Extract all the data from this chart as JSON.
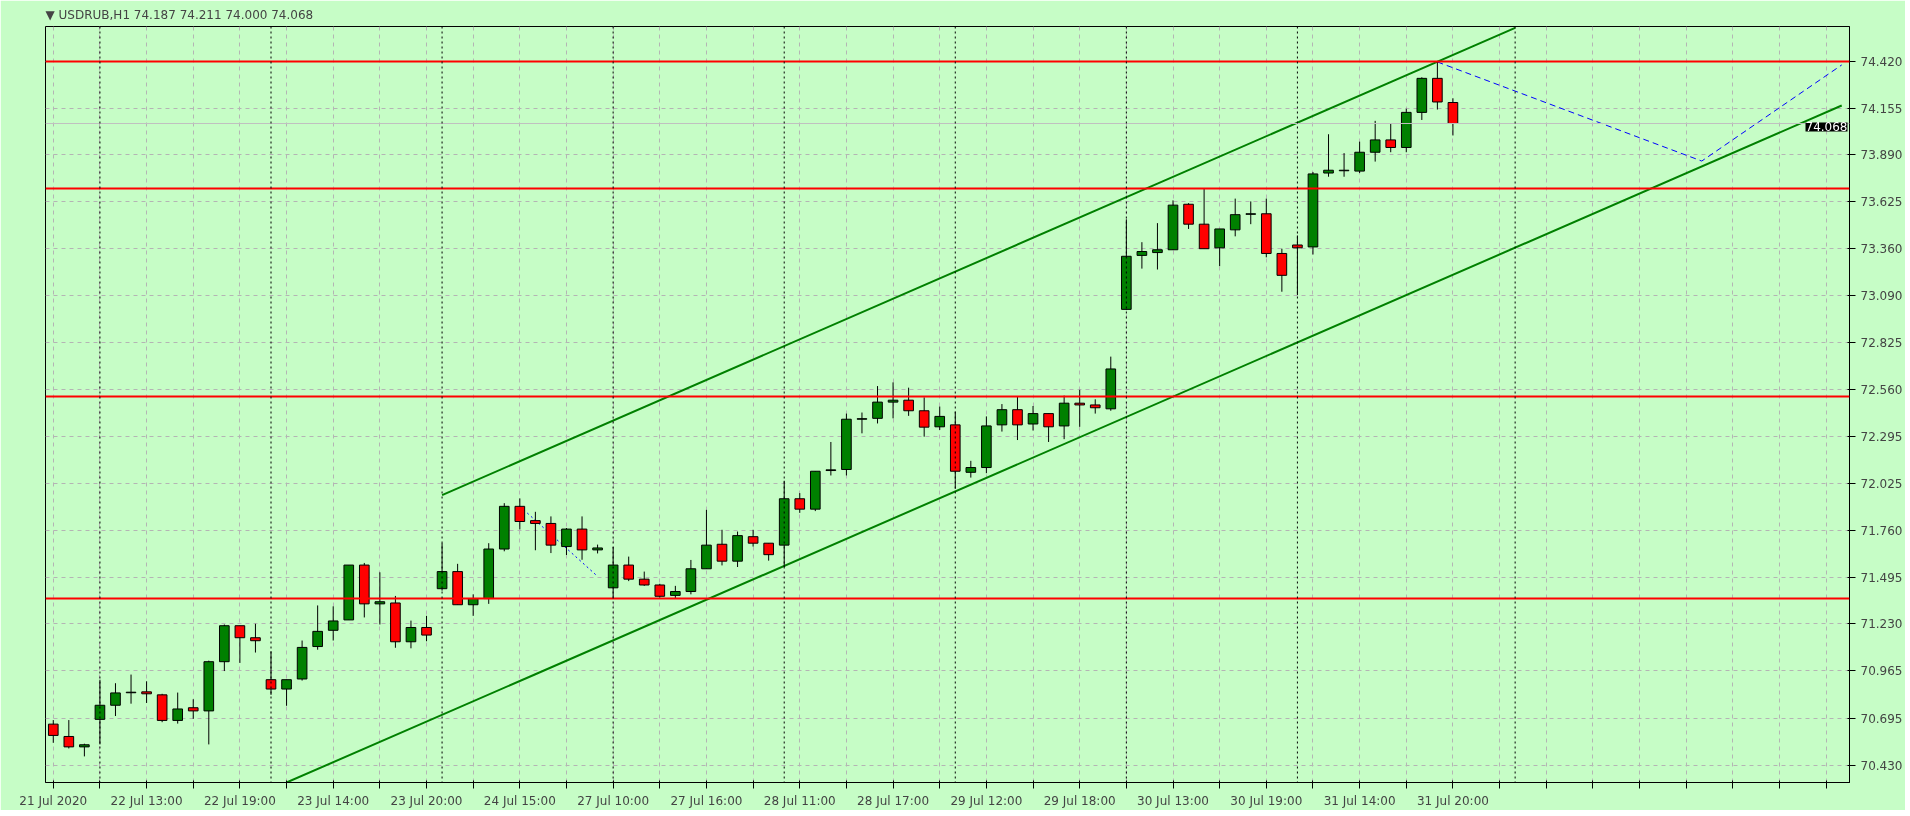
{
  "chart_data": {
    "type": "candlestick",
    "title": "▼ USDRUB,H1  74.187 74.211 74.000 74.068",
    "categories": [
      "21 Jul 2020",
      null,
      null,
      null,
      null,
      null,
      "22 Jul 13:00",
      null,
      null,
      null,
      null,
      null,
      "22 Jul 19:00",
      null,
      null,
      null,
      null,
      null,
      "23 Jul 14:00",
      null,
      null,
      null,
      null,
      null,
      "23 Jul 20:00",
      null,
      null,
      null,
      null,
      null,
      "24 Jul 15:00",
      null,
      null,
      null,
      null,
      null,
      "27 Jul 10:00",
      null,
      null,
      null,
      null,
      null,
      "27 Jul 16:00",
      null,
      null,
      null,
      null,
      null,
      "28 Jul 11:00",
      null,
      null,
      null,
      null,
      null,
      "28 Jul 17:00",
      null,
      null,
      null,
      null,
      null,
      "29 Jul 12:00",
      null,
      null,
      null,
      null,
      null,
      "29 Jul 18:00",
      null,
      null,
      null,
      null,
      null,
      "30 Jul 13:00",
      null,
      null,
      null,
      null,
      null,
      "30 Jul 19:00",
      null,
      null,
      null,
      null,
      null,
      "31 Jul 14:00",
      null,
      null,
      null,
      null,
      null,
      "31 Jul 20:00",
      null,
      null,
      null,
      null,
      null,
      null,
      null,
      null,
      null,
      null,
      null,
      null,
      null,
      null,
      null,
      null,
      null,
      null,
      null,
      null,
      null,
      null,
      null,
      null,
      null
    ],
    "ohlc": [
      [
        70.662,
        70.685,
        70.556,
        70.598
      ],
      [
        70.592,
        70.685,
        70.524,
        70.533
      ],
      [
        70.533,
        70.551,
        70.479,
        70.545
      ],
      [
        70.689,
        70.914,
        70.547,
        70.769
      ],
      [
        70.769,
        70.894,
        70.708,
        70.839
      ],
      [
        70.84,
        70.943,
        70.778,
        70.843
      ],
      [
        70.845,
        70.905,
        70.782,
        70.834
      ],
      [
        70.828,
        70.834,
        70.673,
        70.683
      ],
      [
        70.683,
        70.841,
        70.665,
        70.748
      ],
      [
        70.755,
        70.803,
        70.692,
        70.737
      ],
      [
        70.737,
        71.022,
        70.547,
        71.016
      ],
      [
        71.016,
        71.227,
        70.963,
        71.22
      ],
      [
        71.22,
        71.22,
        71.009,
        71.152
      ],
      [
        71.152,
        71.231,
        71.068,
        71.135
      ],
      [
        70.914,
        71.075,
        70.828,
        70.861
      ],
      [
        70.861,
        70.914,
        70.766,
        70.914
      ],
      [
        70.918,
        71.136,
        70.909,
        71.097
      ],
      [
        71.102,
        71.335,
        71.084,
        71.188
      ],
      [
        71.194,
        71.33,
        71.136,
        71.247
      ],
      [
        71.253,
        71.564,
        71.253,
        71.564
      ],
      [
        71.564,
        71.576,
        71.267,
        71.344
      ],
      [
        71.344,
        71.523,
        71.227,
        71.356
      ],
      [
        71.349,
        71.389,
        71.095,
        71.129
      ],
      [
        71.129,
        71.249,
        71.092,
        71.21
      ],
      [
        71.21,
        71.276,
        71.132,
        71.167
      ],
      [
        71.43,
        71.688,
        71.419,
        71.527
      ],
      [
        71.527,
        71.571,
        71.339,
        71.339
      ],
      [
        71.339,
        71.398,
        71.276,
        71.374
      ],
      [
        71.374,
        71.688,
        71.344,
        71.655
      ],
      [
        71.655,
        71.915,
        71.642,
        71.897
      ],
      [
        71.897,
        71.942,
        71.766,
        71.811
      ],
      [
        71.816,
        71.866,
        71.648,
        71.8
      ],
      [
        71.8,
        71.84,
        71.632,
        71.677
      ],
      [
        71.669,
        71.774,
        71.621,
        71.768
      ],
      [
        71.768,
        71.84,
        71.594,
        71.65
      ],
      [
        71.65,
        71.68,
        71.63,
        71.661
      ],
      [
        71.435,
        71.666,
        71.374,
        71.564
      ],
      [
        71.564,
        71.612,
        71.473,
        71.484
      ],
      [
        71.484,
        71.527,
        71.446,
        71.451
      ],
      [
        71.451,
        71.458,
        71.379,
        71.387
      ],
      [
        71.392,
        71.446,
        71.374,
        71.414
      ],
      [
        71.414,
        71.593,
        71.398,
        71.543
      ],
      [
        71.543,
        71.877,
        71.543,
        71.677
      ],
      [
        71.682,
        71.764,
        71.562,
        71.586
      ],
      [
        71.586,
        71.754,
        71.553,
        71.731
      ],
      [
        71.725,
        71.764,
        71.669,
        71.688
      ],
      [
        71.688,
        71.688,
        71.589,
        71.623
      ],
      [
        71.677,
        72.042,
        71.553,
        71.94
      ],
      [
        71.94,
        71.972,
        71.86,
        71.881
      ],
      [
        71.881,
        72.096,
        71.87,
        72.096
      ],
      [
        72.1,
        72.262,
        72.072,
        72.104
      ],
      [
        72.106,
        72.423,
        72.072,
        72.391
      ],
      [
        72.391,
        72.429,
        72.311,
        72.394
      ],
      [
        72.396,
        72.579,
        72.367,
        72.488
      ],
      [
        72.488,
        72.6,
        72.396,
        72.499
      ],
      [
        72.499,
        72.57,
        72.41,
        72.439
      ],
      [
        72.439,
        72.515,
        72.292,
        72.346
      ],
      [
        72.348,
        72.463,
        72.33,
        72.407
      ],
      [
        72.359,
        72.434,
        71.997,
        72.096
      ],
      [
        72.09,
        72.155,
        72.06,
        72.117
      ],
      [
        72.117,
        72.407,
        72.085,
        72.353
      ],
      [
        72.359,
        72.477,
        72.321,
        72.445
      ],
      [
        72.445,
        72.52,
        72.273,
        72.359
      ],
      [
        72.364,
        72.466,
        72.327,
        72.423
      ],
      [
        72.423,
        72.423,
        72.262,
        72.348
      ],
      [
        72.353,
        72.525,
        72.278,
        72.482
      ],
      [
        72.482,
        72.558,
        72.348,
        72.472
      ],
      [
        72.472,
        72.504,
        72.423,
        72.456
      ],
      [
        72.45,
        72.746,
        72.439,
        72.676
      ],
      [
        73.014,
        73.524,
        73.014,
        73.315
      ],
      [
        73.32,
        73.395,
        73.245,
        73.342
      ],
      [
        73.336,
        73.503,
        73.24,
        73.352
      ],
      [
        73.352,
        73.632,
        73.352,
        73.605
      ],
      [
        73.61,
        73.616,
        73.47,
        73.497
      ],
      [
        73.497,
        73.701,
        73.358,
        73.358
      ],
      [
        73.363,
        73.47,
        73.259,
        73.47
      ],
      [
        73.465,
        73.642,
        73.428,
        73.551
      ],
      [
        73.553,
        73.626,
        73.497,
        73.556
      ],
      [
        73.556,
        73.642,
        73.309,
        73.331
      ],
      [
        73.331,
        73.358,
        73.114,
        73.207
      ],
      [
        73.379,
        73.433,
        73.095,
        73.363
      ],
      [
        73.368,
        73.793,
        73.325,
        73.782
      ],
      [
        73.787,
        74.007,
        73.766,
        73.803
      ],
      [
        73.8,
        73.9,
        73.766,
        73.803
      ],
      [
        73.798,
        73.965,
        73.787,
        73.905
      ],
      [
        73.905,
        74.083,
        73.852,
        73.975
      ],
      [
        73.975,
        74.067,
        73.905,
        73.932
      ],
      [
        73.932,
        74.152,
        73.905,
        74.131
      ],
      [
        74.131,
        74.33,
        74.088,
        74.324
      ],
      [
        74.324,
        74.417,
        74.147,
        74.19
      ],
      [
        74.187,
        74.211,
        74.0,
        74.068
      ],
      null,
      null,
      null,
      null,
      null,
      null,
      null,
      null,
      null,
      null,
      null,
      null,
      null,
      null,
      null,
      null,
      null,
      null,
      null,
      null,
      null,
      null,
      null,
      null,
      null
    ],
    "colors": [
      "#ff0000",
      "#ff0000",
      "#008000",
      "#008000",
      "#008000",
      "#008000",
      "#ff0000",
      "#ff0000",
      "#008000",
      "#ff0000",
      "#008000",
      "#008000",
      "#ff0000",
      "#ff0000",
      "#ff0000",
      "#008000",
      "#008000",
      "#008000",
      "#008000",
      "#008000",
      "#ff0000",
      "#008000",
      "#ff0000",
      "#008000",
      "#ff0000",
      "#008000",
      "#ff0000",
      "#008000",
      "#008000",
      "#008000",
      "#ff0000",
      "#ff0000",
      "#ff0000",
      "#008000",
      "#ff0000",
      "#008000",
      "#008000",
      "#ff0000",
      "#ff0000",
      "#ff0000",
      "#008000",
      "#008000",
      "#008000",
      "#ff0000",
      "#008000",
      "#ff0000",
      "#ff0000",
      "#008000",
      "#ff0000",
      "#008000",
      "#008000",
      "#008000",
      "#008000",
      "#008000",
      "#008000",
      "#ff0000",
      "#ff0000",
      "#008000",
      "#ff0000",
      "#008000",
      "#008000",
      "#008000",
      "#ff0000",
      "#008000",
      "#ff0000",
      "#008000",
      "#ff0000",
      "#ff0000",
      "#008000",
      "#008000",
      "#008000",
      "#008000",
      "#008000",
      "#ff0000",
      "#ff0000",
      "#008000",
      "#008000",
      "#008000",
      "#ff0000",
      "#ff0000",
      "#ff0000",
      "#008000",
      "#008000",
      "#008000",
      "#008000",
      "#008000",
      "#ff0000",
      "#008000",
      "#008000",
      "#ff0000",
      "#ff0000",
      null,
      null,
      null,
      null,
      null,
      null,
      null,
      null,
      null,
      null,
      null,
      null,
      null,
      null,
      null,
      null,
      null,
      null,
      null,
      null,
      null,
      null,
      null,
      null,
      null
    ],
    "series": [
      {
        "type": "line",
        "color": "#008000",
        "line_style": "solid",
        "values": [
          null,
          null,
          null,
          null,
          null,
          null,
          null,
          null,
          null,
          null,
          null,
          null,
          null,
          null,
          null,
          null,
          null,
          null,
          null,
          null,
          null,
          null,
          null,
          null,
          null,
          71.961,
          null,
          null,
          null,
          null,
          null,
          null,
          null,
          null,
          null,
          null,
          null,
          null,
          null,
          null,
          null,
          null,
          null,
          null,
          null,
          null,
          null,
          null,
          null,
          null,
          null,
          null,
          null,
          null,
          null,
          null,
          null,
          null,
          null,
          null,
          null,
          null,
          null,
          null,
          null,
          null,
          null,
          null,
          null,
          null,
          null,
          73.727,
          null,
          null,
          null,
          null,
          null,
          null,
          null,
          null,
          null,
          null,
          null,
          null,
          null,
          null,
          null,
          null,
          null,
          null,
          null,
          null,
          null,
          null,
          74.61,
          null,
          null,
          null,
          null,
          null,
          null,
          null,
          null,
          null,
          null,
          null,
          null,
          null,
          null,
          null,
          null,
          null,
          null,
          null,
          null,
          null
        ]
      },
      {
        "type": "line",
        "color": "#008000",
        "line_style": "solid",
        "values": [
          null,
          null,
          null,
          null,
          null,
          null,
          null,
          null,
          null,
          null,
          null,
          null,
          null,
          null,
          null,
          70.331,
          null,
          null,
          null,
          null,
          null,
          null,
          null,
          null,
          null,
          null,
          null,
          null,
          null,
          null,
          null,
          70.945,
          null,
          null,
          null,
          null,
          null,
          null,
          null,
          null,
          null,
          null,
          null,
          null,
          null,
          null,
          null,
          null,
          null,
          null,
          null,
          null,
          null,
          null,
          null,
          null,
          null,
          null,
          null,
          null,
          null,
          null,
          null,
          null,
          null,
          null,
          null,
          null,
          null,
          null,
          null,
          null,
          null,
          null,
          null,
          null,
          null,
          null,
          null,
          null,
          null,
          null,
          null,
          null,
          null,
          null,
          null,
          null,
          null,
          null,
          null,
          null,
          null,
          null,
          null,
          null,
          null,
          null,
          null,
          null,
          null,
          null,
          null,
          null,
          null,
          null,
          null,
          null,
          null,
          null,
          null,
          null,
          null,
          null,
          null,
          74.17
        ]
      },
      {
        "type": "line",
        "color": "#0000ff",
        "line_style": "dashed",
        "values": [
          null,
          null,
          null,
          null,
          null,
          null,
          null,
          null,
          null,
          null,
          null,
          null,
          null,
          null,
          null,
          null,
          null,
          null,
          null,
          null,
          null,
          null,
          null,
          null,
          null,
          null,
          null,
          null,
          null,
          null,
          null,
          null,
          null,
          null,
          null,
          null,
          null,
          null,
          null,
          null,
          null,
          null,
          null,
          null,
          null,
          null,
          null,
          null,
          null,
          null,
          null,
          null,
          null,
          null,
          null,
          null,
          null,
          null,
          null,
          null,
          null,
          null,
          null,
          null,
          null,
          null,
          null,
          null,
          null,
          null,
          null,
          null,
          null,
          null,
          null,
          null,
          null,
          null,
          null,
          null,
          null,
          null,
          null,
          null,
          null,
          null,
          null,
          null,
          null,
          74.417,
          null,
          null,
          null,
          null,
          null,
          null,
          null,
          null,
          null,
          null,
          null,
          null,
          null,
          null,
          null,
          null,
          73.855,
          null,
          null,
          null,
          null,
          null,
          null,
          null,
          null,
          74.4
        ]
      },
      {
        "type": "line",
        "color": "#0000ff",
        "line_style": "dotted",
        "values": [
          null,
          null,
          null,
          null,
          null,
          null,
          null,
          null,
          null,
          null,
          null,
          null,
          null,
          null,
          null,
          null,
          null,
          null,
          null,
          null,
          null,
          null,
          null,
          null,
          null,
          null,
          null,
          null,
          null,
          null,
          71.897,
          null,
          null,
          null,
          null,
          71.5,
          null,
          null,
          null,
          null,
          null,
          null,
          null,
          null,
          null,
          null,
          null,
          null,
          null,
          null,
          null,
          null,
          null,
          null,
          null,
          null,
          null,
          null,
          null,
          null,
          null,
          null,
          null,
          null,
          null,
          null,
          null,
          null,
          null,
          null,
          null,
          null,
          null,
          null,
          null,
          null,
          null,
          null,
          null,
          null,
          null,
          null,
          null,
          null,
          null,
          null,
          null,
          null,
          null,
          null,
          null,
          null,
          null,
          null,
          null,
          null,
          null,
          null,
          null,
          null,
          null,
          null,
          null,
          null,
          null,
          null,
          null,
          null,
          null,
          null,
          null,
          null,
          null,
          null,
          null,
          null
        ]
      }
    ],
    "ylim": [
      70.331,
      74.618
    ],
    "yticks": [
      {
        "value": 74.42,
        "label": "74.420"
      },
      {
        "value": 74.155,
        "label": "74.155"
      },
      {
        "value": 73.89,
        "label": "73.890"
      },
      {
        "value": 73.625,
        "label": "73.625"
      },
      {
        "value": 73.36,
        "label": "73.360"
      },
      {
        "value": 73.09,
        "label": "73.090"
      },
      {
        "value": 72.825,
        "label": "72.825"
      },
      {
        "value": 72.56,
        "label": "72.560"
      },
      {
        "value": 72.295,
        "label": "72.295"
      },
      {
        "value": 72.025,
        "label": "72.025"
      },
      {
        "value": 71.76,
        "label": "71.760"
      },
      {
        "value": 71.495,
        "label": "71.495"
      },
      {
        "value": 71.23,
        "label": "71.230"
      },
      {
        "value": 70.965,
        "label": "70.965"
      },
      {
        "value": 70.695,
        "label": "70.695"
      },
      {
        "value": 70.43,
        "label": "70.430"
      }
    ],
    "grid": true,
    "ref_lines": [
      {
        "axis": "y",
        "value": 74.42,
        "color": "#ff0000",
        "line_style": "solid"
      },
      {
        "axis": "y",
        "value": 73.7,
        "color": "#ff0000",
        "line_style": "solid"
      },
      {
        "axis": "y",
        "value": 72.52,
        "color": "#ff0000",
        "line_style": "solid"
      },
      {
        "axis": "y",
        "value": 71.374,
        "color": "#ff0000",
        "line_style": "solid"
      },
      {
        "axis": "y",
        "value": 74.068,
        "label": "74.068",
        "color": "#c0c0c0",
        "line_style": "solid"
      }
    ]
  }
}
